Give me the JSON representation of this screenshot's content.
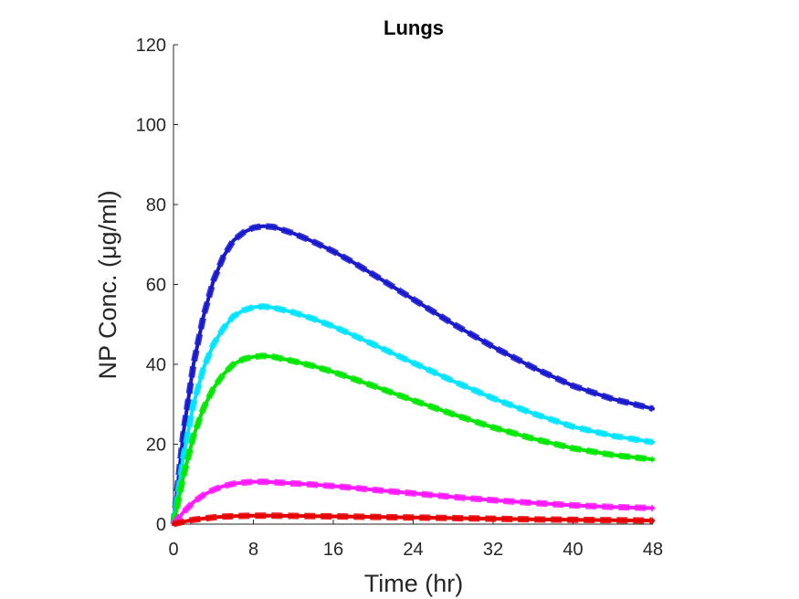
{
  "chart_data": {
    "type": "line",
    "title": "Lungs",
    "xlabel": "Time (hr)",
    "ylabel": "NP Conc. (μg/ml)",
    "xlim": [
      0,
      48
    ],
    "ylim": [
      0,
      120
    ],
    "xticks": [
      "0",
      "8",
      "16",
      "24",
      "32",
      "40",
      "48"
    ],
    "yticks": [
      "0",
      "20",
      "40",
      "60",
      "80",
      "100",
      "120"
    ],
    "grid": false,
    "x": [
      0,
      1,
      2,
      3,
      4,
      5,
      6,
      7,
      8,
      9,
      10,
      12,
      14,
      16,
      18,
      20,
      24,
      28,
      32,
      36,
      40,
      44,
      48
    ],
    "series": [
      {
        "color": "#1a1acc",
        "values": [
          0,
          23,
          40,
          52,
          61,
          67,
          71,
          73,
          74.2,
          74.6,
          74.4,
          72.8,
          70.7,
          68.3,
          65.5,
          62.5,
          56.3,
          50.1,
          44.4,
          39.2,
          34.6,
          31.3,
          28.9
        ]
      },
      {
        "color": "#00e5ff",
        "values": [
          0,
          17,
          30,
          39,
          45,
          49,
          52,
          53.5,
          54.3,
          54.5,
          54.2,
          53,
          51.4,
          49.5,
          47.3,
          45,
          40.4,
          35.8,
          31.5,
          27.7,
          24.4,
          22.1,
          20.5
        ]
      },
      {
        "color": "#00e600",
        "values": [
          0,
          12,
          22,
          29,
          34,
          37.5,
          40,
          41.3,
          41.9,
          42.1,
          41.9,
          40.8,
          39.6,
          38.1,
          36.4,
          34.6,
          31,
          27.5,
          24.2,
          21.4,
          19,
          17.3,
          16.2
        ]
      },
      {
        "color": "#ff1aff",
        "values": [
          0,
          3,
          5.5,
          7.3,
          8.6,
          9.5,
          10.1,
          10.4,
          10.6,
          10.6,
          10.5,
          10.2,
          9.9,
          9.5,
          9.1,
          8.6,
          7.7,
          6.8,
          6,
          5.3,
          4.7,
          4.3,
          4
        ]
      },
      {
        "color": "#e60000",
        "values": [
          0,
          0.6,
          1.1,
          1.4,
          1.7,
          1.9,
          2,
          2.05,
          2.1,
          2.1,
          2.1,
          2.05,
          2,
          1.95,
          1.88,
          1.8,
          1.65,
          1.5,
          1.35,
          1.2,
          1.08,
          0.98,
          0.9
        ]
      }
    ]
  }
}
